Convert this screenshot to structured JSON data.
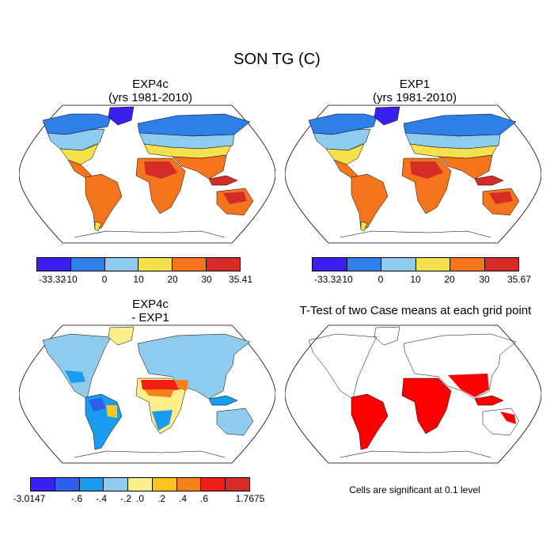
{
  "figure": {
    "title": "SON TG (C)"
  },
  "panels": [
    {
      "id": "top-left",
      "title_line1": "EXP4c",
      "title_line2": "(yrs 1981-2010)",
      "colorbar": {
        "colors": [
          "#3a1fee",
          "#2f7fe8",
          "#8ecbec",
          "#f5e14b",
          "#f4751b",
          "#d62c28"
        ],
        "labels": [
          "-33.32",
          "-10",
          "0",
          "10",
          "20",
          "30",
          "35.41"
        ]
      }
    },
    {
      "id": "top-right",
      "title_line1": "EXP1",
      "title_line2": "(yrs 1981-2010)",
      "colorbar": {
        "colors": [
          "#3a1fee",
          "#2f7fe8",
          "#8ecbec",
          "#f5e14b",
          "#f4751b",
          "#d62c28"
        ],
        "labels": [
          "-33.32",
          "-10",
          "0",
          "10",
          "20",
          "30",
          "35.67"
        ]
      }
    },
    {
      "id": "bottom-left",
      "title_line1": "EXP4c",
      "title_line2": "- EXP1",
      "colorbar": {
        "colors": [
          "#3a1fee",
          "#2f5ee8",
          "#199bf0",
          "#8ecbec",
          "#fdf08a",
          "#fbc31e",
          "#f6821c",
          "#f01e14",
          "#d62c28"
        ],
        "labels": [
          "-3.0147",
          "-.6",
          "-.4",
          "-.2",
          ".0",
          ".2",
          ".4",
          ".6",
          "1.7675"
        ]
      }
    },
    {
      "id": "bottom-right",
      "title_line1": "T-Test of two Case means at each grid point",
      "note": "Cells are significant at 0.1 level",
      "sig_color": "#ff0000"
    }
  ]
}
